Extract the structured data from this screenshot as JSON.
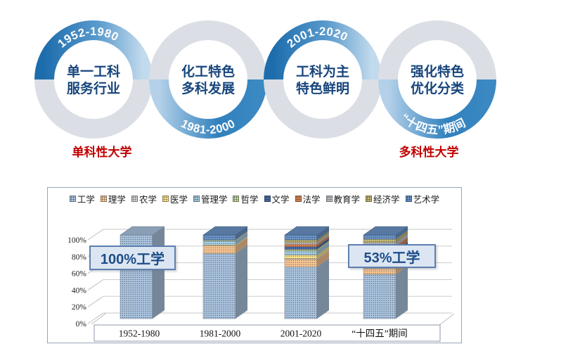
{
  "timeline": {
    "rings": [
      {
        "period": "1952-1980",
        "arc": "top",
        "line1": "单一工科",
        "line2": "服务行业"
      },
      {
        "period": "1981-2000",
        "arc": "bottom",
        "line1": "化工特色",
        "line2": "多科发展"
      },
      {
        "period": "2001-2020",
        "arc": "top",
        "line1": "工科为主",
        "line2": "特色鲜明"
      },
      {
        "period": "“十四五”期间",
        "arc": "bottom",
        "line1": "强化特色",
        "line2": "优化分类"
      }
    ],
    "labels": [
      {
        "text": "单科性大学",
        "x": 145
      },
      {
        "text": "多科性大学",
        "x": 610
      }
    ],
    "colors": {
      "blue_dark": "#1d6dad",
      "blue_light": "#c2daed",
      "gray": "#dbdfe5",
      "center_text": "#17457c",
      "label_red": "#c00000",
      "arc_text": "#ffffff"
    }
  },
  "chart_data": {
    "type": "bar",
    "variant": "3d-100%-stacked-column",
    "title": "",
    "categories": [
      "1952-1980",
      "1981-2000",
      "2001-2020",
      "“十四五”期间"
    ],
    "series": [
      {
        "name": "工学",
        "color": "#adc6e2",
        "values": [
          100,
          78,
          62,
          53
        ]
      },
      {
        "name": "理学",
        "color": "#fbc998",
        "values": [
          0,
          9,
          9,
          7
        ]
      },
      {
        "name": "农学",
        "color": "#d8d8d8",
        "values": [
          0,
          0,
          1,
          2
        ]
      },
      {
        "name": "医学",
        "color": "#ffe68e",
        "values": [
          0,
          1,
          4,
          5
        ]
      },
      {
        "name": "管理学",
        "color": "#abd1e6",
        "values": [
          0,
          5,
          5,
          7
        ]
      },
      {
        "name": "哲学",
        "color": "#c3d89e",
        "values": [
          0,
          1,
          2,
          3
        ]
      },
      {
        "name": "文学",
        "color": "#4d6fae",
        "values": [
          0,
          0,
          3,
          5
        ]
      },
      {
        "name": "法学",
        "color": "#dd8a5c",
        "values": [
          0,
          0,
          3,
          5
        ]
      },
      {
        "name": "教育学",
        "color": "#c6c6ce",
        "values": [
          0,
          0,
          2,
          4
        ]
      },
      {
        "name": "经济学",
        "color": "#c5ba79",
        "values": [
          0,
          0,
          3,
          4
        ]
      },
      {
        "name": "艺术学",
        "color": "#6d96c9",
        "values": [
          0,
          6,
          6,
          5
        ]
      }
    ],
    "y_ticks": [
      "0%",
      "20%",
      "40%",
      "60%",
      "80%",
      "100%"
    ],
    "ylim": [
      0,
      100
    ],
    "legend_position": "top",
    "grid": true,
    "annotations": [
      {
        "text": "100%工学",
        "target": "1952-1980"
      },
      {
        "text": "53%工学",
        "target": "“十四五”期间"
      }
    ]
  }
}
